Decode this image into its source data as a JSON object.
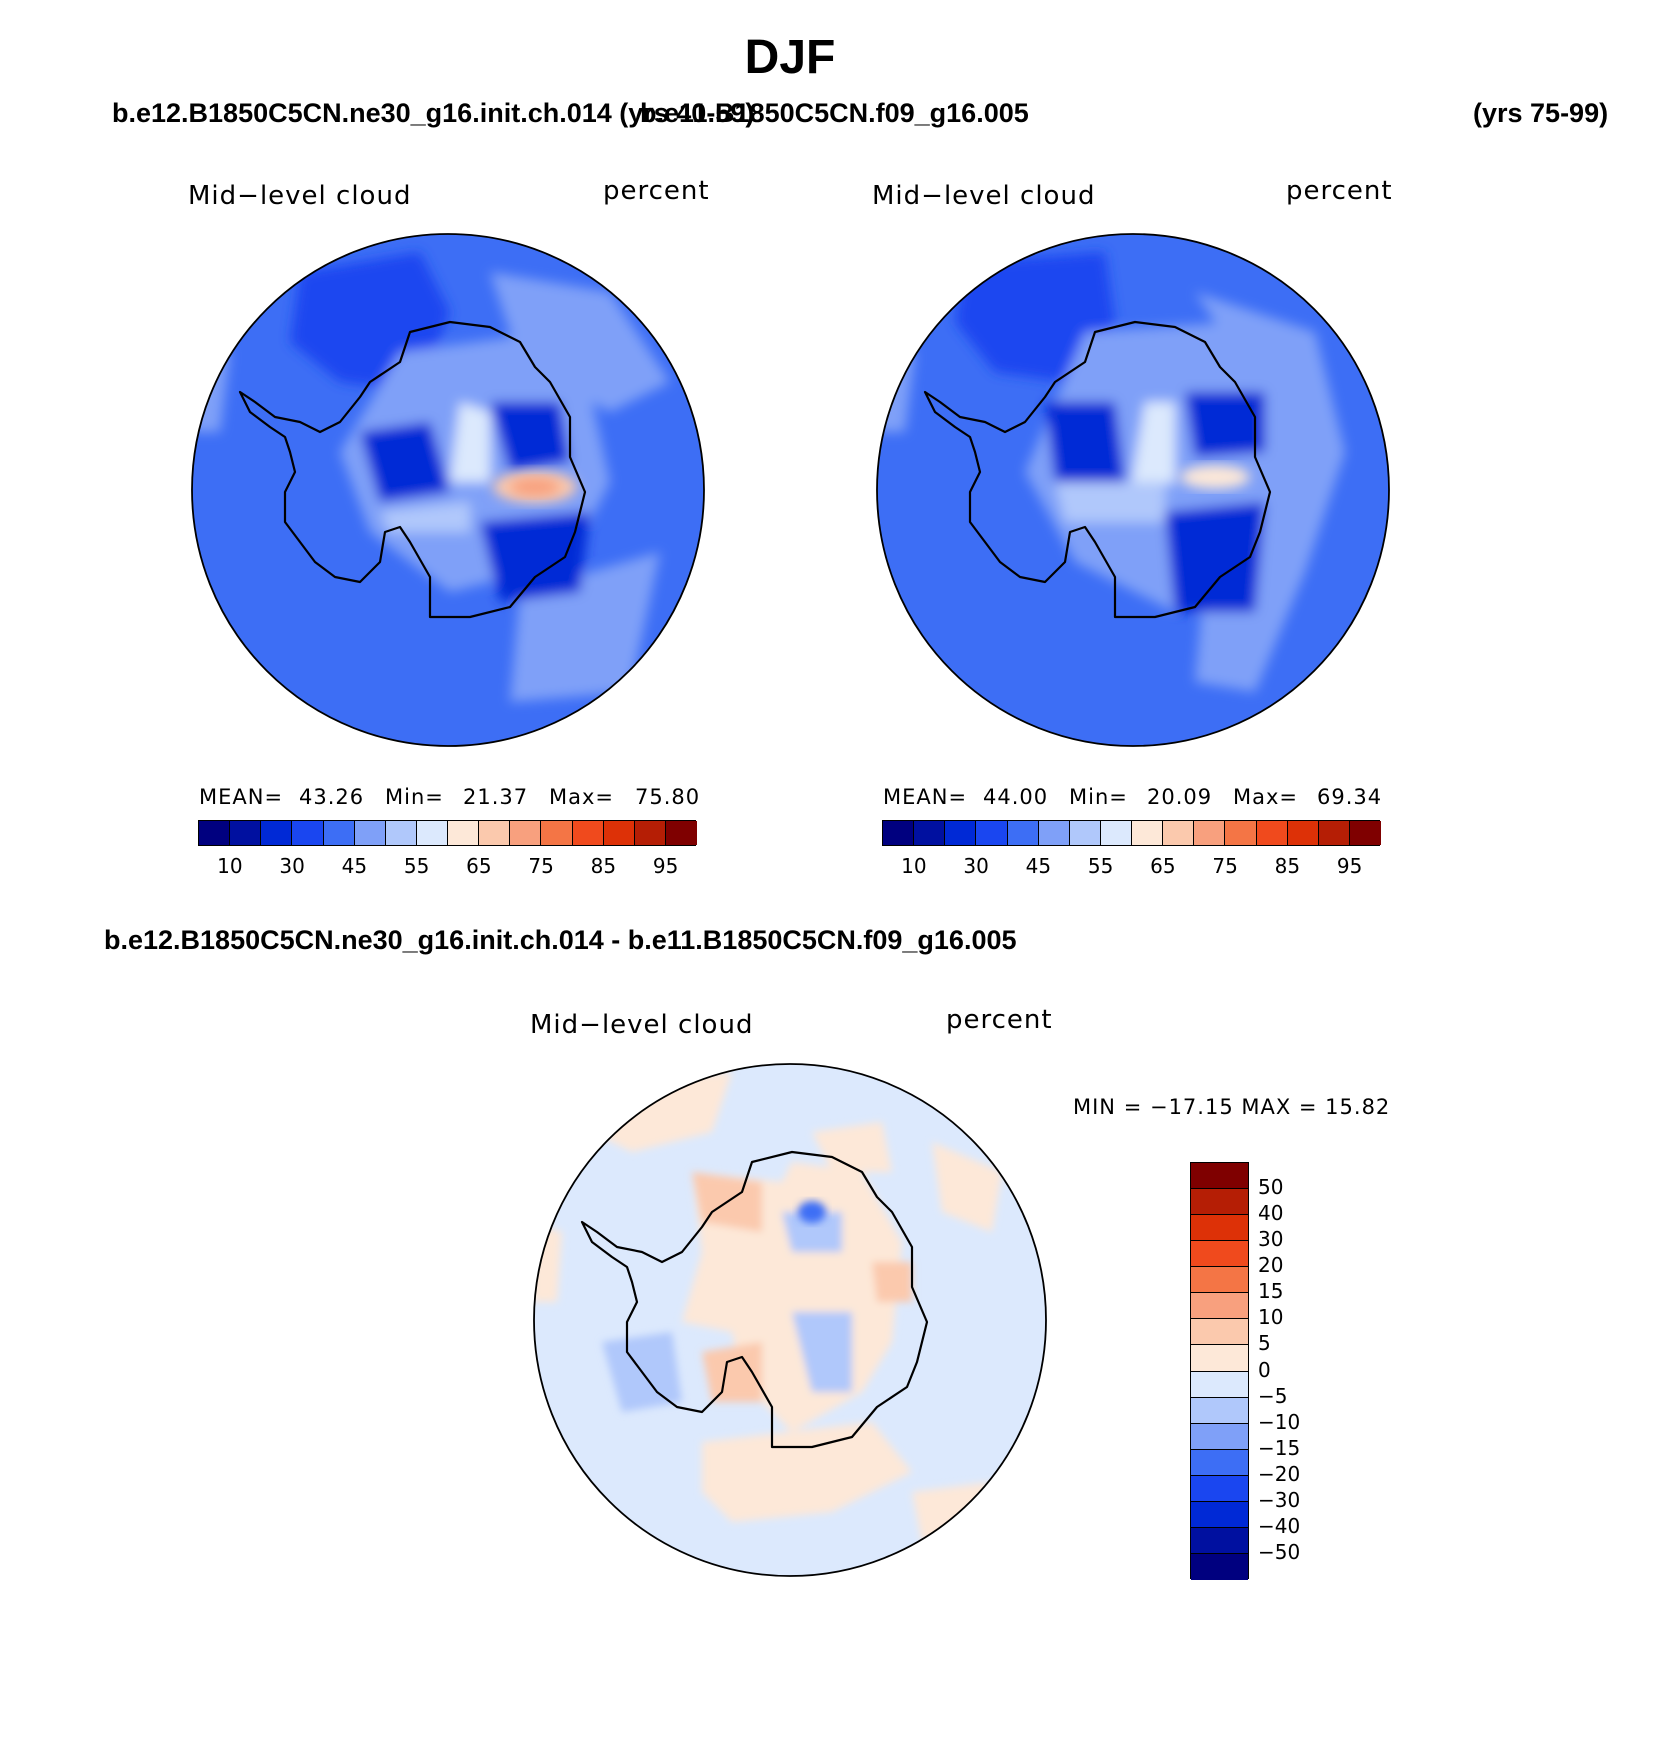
{
  "title": "DJF",
  "left_case": "b.e12.B1850C5CN.ne30_g16.init.ch.014 (yrs 40-59)",
  "right_case": "b.e11.B1850C5CN.f09_g16.005",
  "right_years": "(yrs 75-99)",
  "diff_title": "b.e12.B1850C5CN.ne30_g16.init.ch.014 - b.e11.B1850C5CN.f09_g16.005",
  "panels": [
    {
      "variable": "Mid−level cloud",
      "units": "percent",
      "mean_label": "MEAN=",
      "mean": "43.26",
      "min_label": "Min=",
      "min": "21.37",
      "max_label": "Max=",
      "max": "75.80"
    },
    {
      "variable": "Mid−level cloud",
      "units": "percent",
      "mean_label": "MEAN=",
      "mean": "44.00",
      "min_label": "Min=",
      "min": "20.09",
      "max_label": "Max=",
      "max": "69.34"
    }
  ],
  "diff_panel": {
    "variable": "Mid−level cloud",
    "units": "percent",
    "minmax": "MIN = −17.15 MAX =   15.82"
  },
  "colorbar": {
    "colors": [
      "#00007f",
      "#0010a0",
      "#0029d6",
      "#1a46f0",
      "#3d6ef5",
      "#7fa0f8",
      "#b0c8fb",
      "#dce9fd",
      "#fde8d8",
      "#fbc9ad",
      "#f8a07e",
      "#f47545",
      "#f04a1d",
      "#dd3107",
      "#b51e05",
      "#7f0000"
    ],
    "tick_labels": [
      "10",
      "30",
      "45",
      "55",
      "65",
      "75",
      "85",
      "95"
    ]
  },
  "diff_colorbar": {
    "colors_top_to_bottom": [
      "#7f0000",
      "#b51e05",
      "#dd3107",
      "#f04a1d",
      "#f47545",
      "#f8a07e",
      "#fbc9ad",
      "#fde8d8",
      "#dce9fd",
      "#b0c8fb",
      "#7fa0f8",
      "#3d6ef5",
      "#1a46f0",
      "#0029d6",
      "#0010a0",
      "#00007f"
    ],
    "tick_labels": [
      "50",
      "40",
      "30",
      "20",
      "15",
      "10",
      "5",
      "0",
      "−5",
      "−10",
      "−15",
      "−20",
      "−30",
      "−40",
      "−50"
    ]
  }
}
